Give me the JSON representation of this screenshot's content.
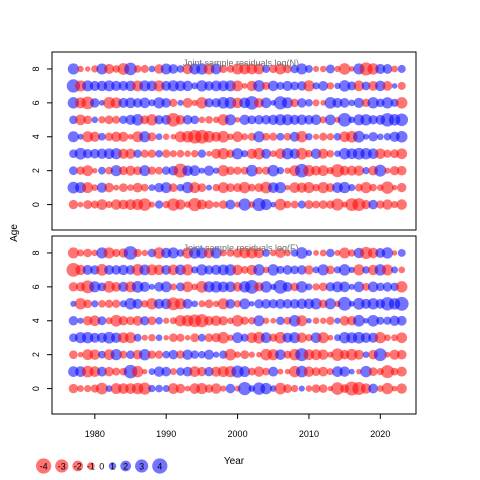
{
  "chart_data": {
    "type": "scatter",
    "subtype": "bubble",
    "xlabel": "Year",
    "ylabel": "Age",
    "xticks": [
      1980,
      1990,
      2000,
      2010,
      2020
    ],
    "yticks": [
      0,
      2,
      4,
      6,
      8
    ],
    "xlim": [
      1974,
      2025
    ],
    "ylim": [
      -1.5,
      9
    ],
    "years": [
      1977,
      2023
    ],
    "ages": [
      0,
      8
    ],
    "colors": {
      "positive": "#0000ff",
      "negative": "#ff0000"
    },
    "fill_opacity": 0.55,
    "panels": [
      {
        "title": "Joint sample residuals log(N)",
        "seed": 7,
        "rows": [
          "-2-1-1-1-2-1-2-2-2-2-3-1+1-1-3-2-1-3-2-1-1-1+2-1+3-1+3+2+1-2-1-1+1-1-1-1-1-3-1-3-3-2+2-1-2-1-2",
          "+2+2-2-1+2-2-1-1-1-2-1+1+2+2-1+1+2-2-1+1-1-2-1-1-2-1-1-2+2+2-1-2-2-2-1-2-1+2+2+1-1-2-1-1-3-1-2",
          "+1-1-2-1+1-1+2-1-2-1+2-1-1+1+2-3+2+2+1+2+1-2-1-1-1+2-1-1+2+1-1-2+3-2-2-2-1-3-2-2-2+1-2+3-1-2-2",
          "+1+2+2+2+2+2+2-2-2+1-1-1+1-1-1-1-1-1+1-1-2-2-1+2+1-2-2+2-1-2+2+2-2-1+2-2-1+1+2+2+2+2+2-2-1-1-2",
          "+2+1-2-2+1-1-2-2-1-2+2-1+1-1-1-2-2-3-3-2-2-2-1-2-1-1+2-1-1+1-1+2-2+1-1-1-1+1-2-2+2+1+2+1+1+2+2",
          "+1-2-1+1-1-1-1+1+2+2-1-2+2+2-3-2+2+1-1-1-1-2+2-1+2+1+2+2+2+2+2+2+2+2+2-1+2-1+3+1+2+2+2+2+3+2+3",
          "+2-2-3+2+1-2-2+2+2+2+2+1+2+2-1+1-2-1-2+2+2+2+2-2+2+3-2+2+1+3+2-1+2+1-1-1+2+2+2+1+2-1+2+1+2+1-2",
          "+3-2+2+2+2+2+2+2+2-2+2+2-2+2+2+2+2+1+2+2+2+2+2-2-1-2+2-1+2+1+2+1+2-2+1+2-1+1+2+1-2+1-2+2-2+1-1",
          "+2-1-1-1+2-2-1-2+3-1-1+1-2+2+2+1-2+2+2-2+2-1-1-2-2-2-2+1-1-2-1+1+2+1-1-1+1-1-2-1+2-3-2+2+2-1+1"
        ]
      },
      {
        "title": "Joint sample residuals log(F)",
        "seed": 19,
        "rows": [
          "-2-1-1-1-2+1-2-2-2-2-3+1+1+1-2-2-1-2-2-1-2-1+2-1+3+1+3+2+1-2-1-1+1-1-1-1-1-3-1-3-3-2+2-1-2-1-2",
          "+2+2-2-2+2-2-1-1+3-2-1+1+2+2-1+1+2-2-2+2-2-2-2+3+2-1-2-1+2-1-1-2+2-2-1-2-1+2+2+1-1+2-1-1-3-1-2",
          "-1-1-2-2+1-2+2-1+1-2+2-1-1+1+2-1+2+1+1+2+1+1-2-1-1-1-1-2-2+2-1-2+3-2-2-2-1-3-2-2-2+1-2+3-1-2-2",
          "+1+2+2+2+2+2+2-2-2+1-1-1+1-1-1-1-1-1+1-1-2-2-1+2+1-2-2+2-1-2+2+2-2-1+2-2-1+1+2+2+2+2+2-2-1-1-2",
          "+2+1-2-2+1-1-2-2-1-2+2-1+1-1-1-2-2-3-3-2-2-2-1-2-1-1+2-1-1+1-1+2-2+1-1-1-1+1-2-2+2+1+2+1+1+2+2",
          "+1-2-1+1-1-1-1+1+2+2-1-2+2+2-3-2+2+1-1-1-1-2+2-1+2+1+2+2+2+2+2+2+2+2+2-1+2-1+3+1+2+2+2+2+3+2+3",
          "-2-2-3+2+1-2-2+2-2+2+2+1+2+2-1+1-2-1-2+2+2+2+2-2+2+3-2+2+1+3+2-1+2+1-1-1+2+2+2+1+2-1+2+1+2+1-2",
          "-3-2+2+2-2+2+2+2+2-2+2-2-2+2-2+2-2+1+2+2+2+2+2-2-1-2+2-1+2+1+2+1+2-2+1+2-1+1+2+1-2+1-2+2-2+1-1",
          "-2-1-1-1+2-2-1-2+3-1-1+1-2+2+2+1-2+2+2-2+2-1-1-2-2-2-2+1-1-2-1+1+2+1-1-1+1-1-2-1+2-3-2+2+2-1+1"
        ]
      }
    ],
    "legend": {
      "values": [
        -4,
        -3,
        -2,
        -1,
        0,
        1,
        2,
        3,
        4
      ],
      "labels": [
        "-4",
        "-3",
        "-2",
        "-1",
        "0",
        "1",
        "2",
        "3",
        "4"
      ]
    }
  }
}
